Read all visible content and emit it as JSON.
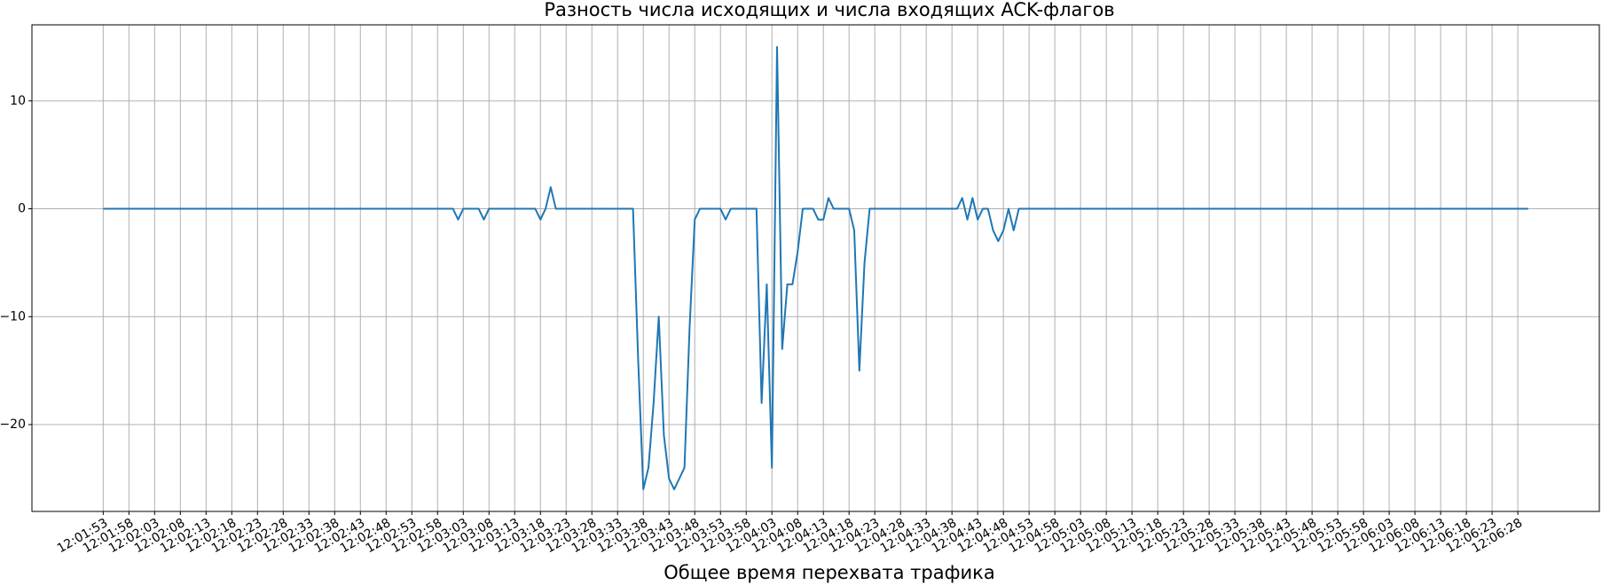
{
  "chart_data": {
    "type": "line",
    "title": "Разность числа исходящих и числа входящих ACK-флагов",
    "x_label": "Общее время перехвата трафика",
    "categories": [
      "12:01:53",
      null,
      null,
      null,
      null,
      "12:01:58",
      null,
      null,
      null,
      null,
      "12:02:03",
      null,
      null,
      null,
      null,
      "12:02:08",
      null,
      null,
      null,
      null,
      "12:02:13",
      null,
      null,
      null,
      null,
      "12:02:18",
      null,
      null,
      null,
      null,
      "12:02:23",
      null,
      null,
      null,
      null,
      "12:02:28",
      null,
      null,
      null,
      null,
      "12:02:33",
      null,
      null,
      null,
      null,
      "12:02:38",
      null,
      null,
      null,
      null,
      "12:02:43",
      null,
      null,
      null,
      null,
      "12:02:48",
      null,
      null,
      null,
      null,
      "12:02:53",
      null,
      null,
      null,
      null,
      "12:02:58",
      null,
      null,
      null,
      null,
      "12:03:03",
      null,
      null,
      null,
      null,
      "12:03:08",
      null,
      null,
      null,
      null,
      "12:03:13",
      null,
      null,
      null,
      null,
      "12:03:18",
      null,
      null,
      null,
      null,
      "12:03:23",
      null,
      null,
      null,
      null,
      "12:03:28",
      null,
      null,
      null,
      null,
      "12:03:33",
      null,
      null,
      null,
      null,
      "12:03:38",
      null,
      null,
      null,
      null,
      "12:03:43",
      null,
      null,
      null,
      null,
      "12:03:48",
      null,
      null,
      null,
      null,
      "12:03:53",
      null,
      null,
      null,
      null,
      "12:03:58",
      null,
      null,
      null,
      null,
      "12:04:03",
      null,
      null,
      null,
      null,
      "12:04:08",
      null,
      null,
      null,
      null,
      "12:04:13",
      null,
      null,
      null,
      null,
      "12:04:18",
      null,
      null,
      null,
      null,
      "12:04:23",
      null,
      null,
      null,
      null,
      "12:04:28",
      null,
      null,
      null,
      null,
      "12:04:33",
      null,
      null,
      null,
      null,
      "12:04:38",
      null,
      null,
      null,
      null,
      "12:04:43",
      null,
      null,
      null,
      null,
      "12:04:48",
      null,
      null,
      null,
      null,
      "12:04:53",
      null,
      null,
      null,
      null,
      "12:04:58",
      null,
      null,
      null,
      null,
      "12:05:03",
      null,
      null,
      null,
      null,
      "12:05:08",
      null,
      null,
      null,
      null,
      "12:05:13",
      null,
      null,
      null,
      null,
      "12:05:18",
      null,
      null,
      null,
      null,
      "12:05:23",
      null,
      null,
      null,
      null,
      "12:05:28",
      null,
      null,
      null,
      null,
      "12:05:33",
      null,
      null,
      null,
      null,
      "12:05:38",
      null,
      null,
      null,
      null,
      "12:05:43",
      null,
      null,
      null,
      null,
      "12:05:48",
      null,
      null,
      null,
      null,
      "12:05:53",
      null,
      null,
      null,
      null,
      "12:05:58",
      null,
      null,
      null,
      null,
      "12:06:03",
      null,
      null,
      null,
      null,
      "12:06:08",
      null,
      null,
      null,
      null,
      "12:06:13",
      null,
      null,
      null,
      null,
      "12:06:18",
      null,
      null,
      null,
      null,
      "12:06:23",
      null,
      null,
      null,
      null,
      "12:06:28",
      null,
      null
    ],
    "values": [
      0,
      0,
      0,
      0,
      0,
      0,
      0,
      0,
      0,
      0,
      0,
      0,
      0,
      0,
      0,
      0,
      0,
      0,
      0,
      0,
      0,
      0,
      0,
      0,
      0,
      0,
      0,
      0,
      0,
      0,
      0,
      0,
      0,
      0,
      0,
      0,
      0,
      0,
      0,
      0,
      0,
      0,
      0,
      0,
      0,
      0,
      0,
      0,
      0,
      0,
      0,
      0,
      0,
      0,
      0,
      0,
      0,
      0,
      0,
      0,
      0,
      0,
      0,
      0,
      0,
      0,
      0,
      0,
      0,
      -1,
      0,
      0,
      0,
      0,
      -1,
      0,
      0,
      0,
      0,
      0,
      0,
      0,
      0,
      0,
      0,
      -1,
      0,
      2,
      0,
      0,
      0,
      0,
      0,
      0,
      0,
      0,
      0,
      0,
      0,
      0,
      0,
      0,
      0,
      0,
      -14,
      -26,
      -24,
      -18,
      -10,
      -21,
      -25,
      -26,
      -25,
      -24,
      -11,
      -1,
      0,
      0,
      0,
      0,
      0,
      -1,
      0,
      0,
      0,
      0,
      0,
      0,
      -18,
      -7,
      -24,
      15,
      -13,
      -7,
      -7,
      -4,
      0,
      0,
      0,
      -1,
      -1,
      1,
      0,
      0,
      0,
      0,
      -2,
      -15,
      -5,
      0,
      0,
      0,
      0,
      0,
      0,
      0,
      0,
      0,
      0,
      0,
      0,
      0,
      0,
      0,
      0,
      0,
      0,
      1,
      -1,
      1,
      -1,
      0,
      0,
      -2,
      -3,
      -2,
      0,
      -2,
      0,
      0,
      0,
      0,
      0,
      0,
      0,
      0,
      0,
      0,
      0,
      0,
      0,
      0,
      0,
      0,
      0,
      0,
      0,
      0,
      0,
      0,
      0,
      0,
      0,
      0,
      0,
      0,
      0,
      0,
      0,
      0,
      0,
      0,
      0,
      0,
      0,
      0,
      0,
      0,
      0,
      0,
      0,
      0,
      0,
      0,
      0,
      0,
      0,
      0,
      0,
      0,
      0,
      0,
      0,
      0,
      0,
      0,
      0,
      0,
      0,
      0,
      0,
      0,
      0,
      0,
      0,
      0,
      0,
      0,
      0,
      0,
      0,
      0,
      0,
      0,
      0,
      0,
      0,
      0,
      0,
      0,
      0,
      0,
      0,
      0,
      0,
      0,
      0,
      0,
      0,
      0,
      0,
      0,
      0,
      0,
      0,
      0,
      0,
      0
    ],
    "color": "#1f77b4",
    "ylim": [
      -28.05,
      17.05
    ],
    "yticks": [
      {
        "value": -20,
        "label": "−20"
      },
      {
        "value": -10,
        "label": "−10"
      },
      0,
      10
    ],
    "grid": true
  }
}
